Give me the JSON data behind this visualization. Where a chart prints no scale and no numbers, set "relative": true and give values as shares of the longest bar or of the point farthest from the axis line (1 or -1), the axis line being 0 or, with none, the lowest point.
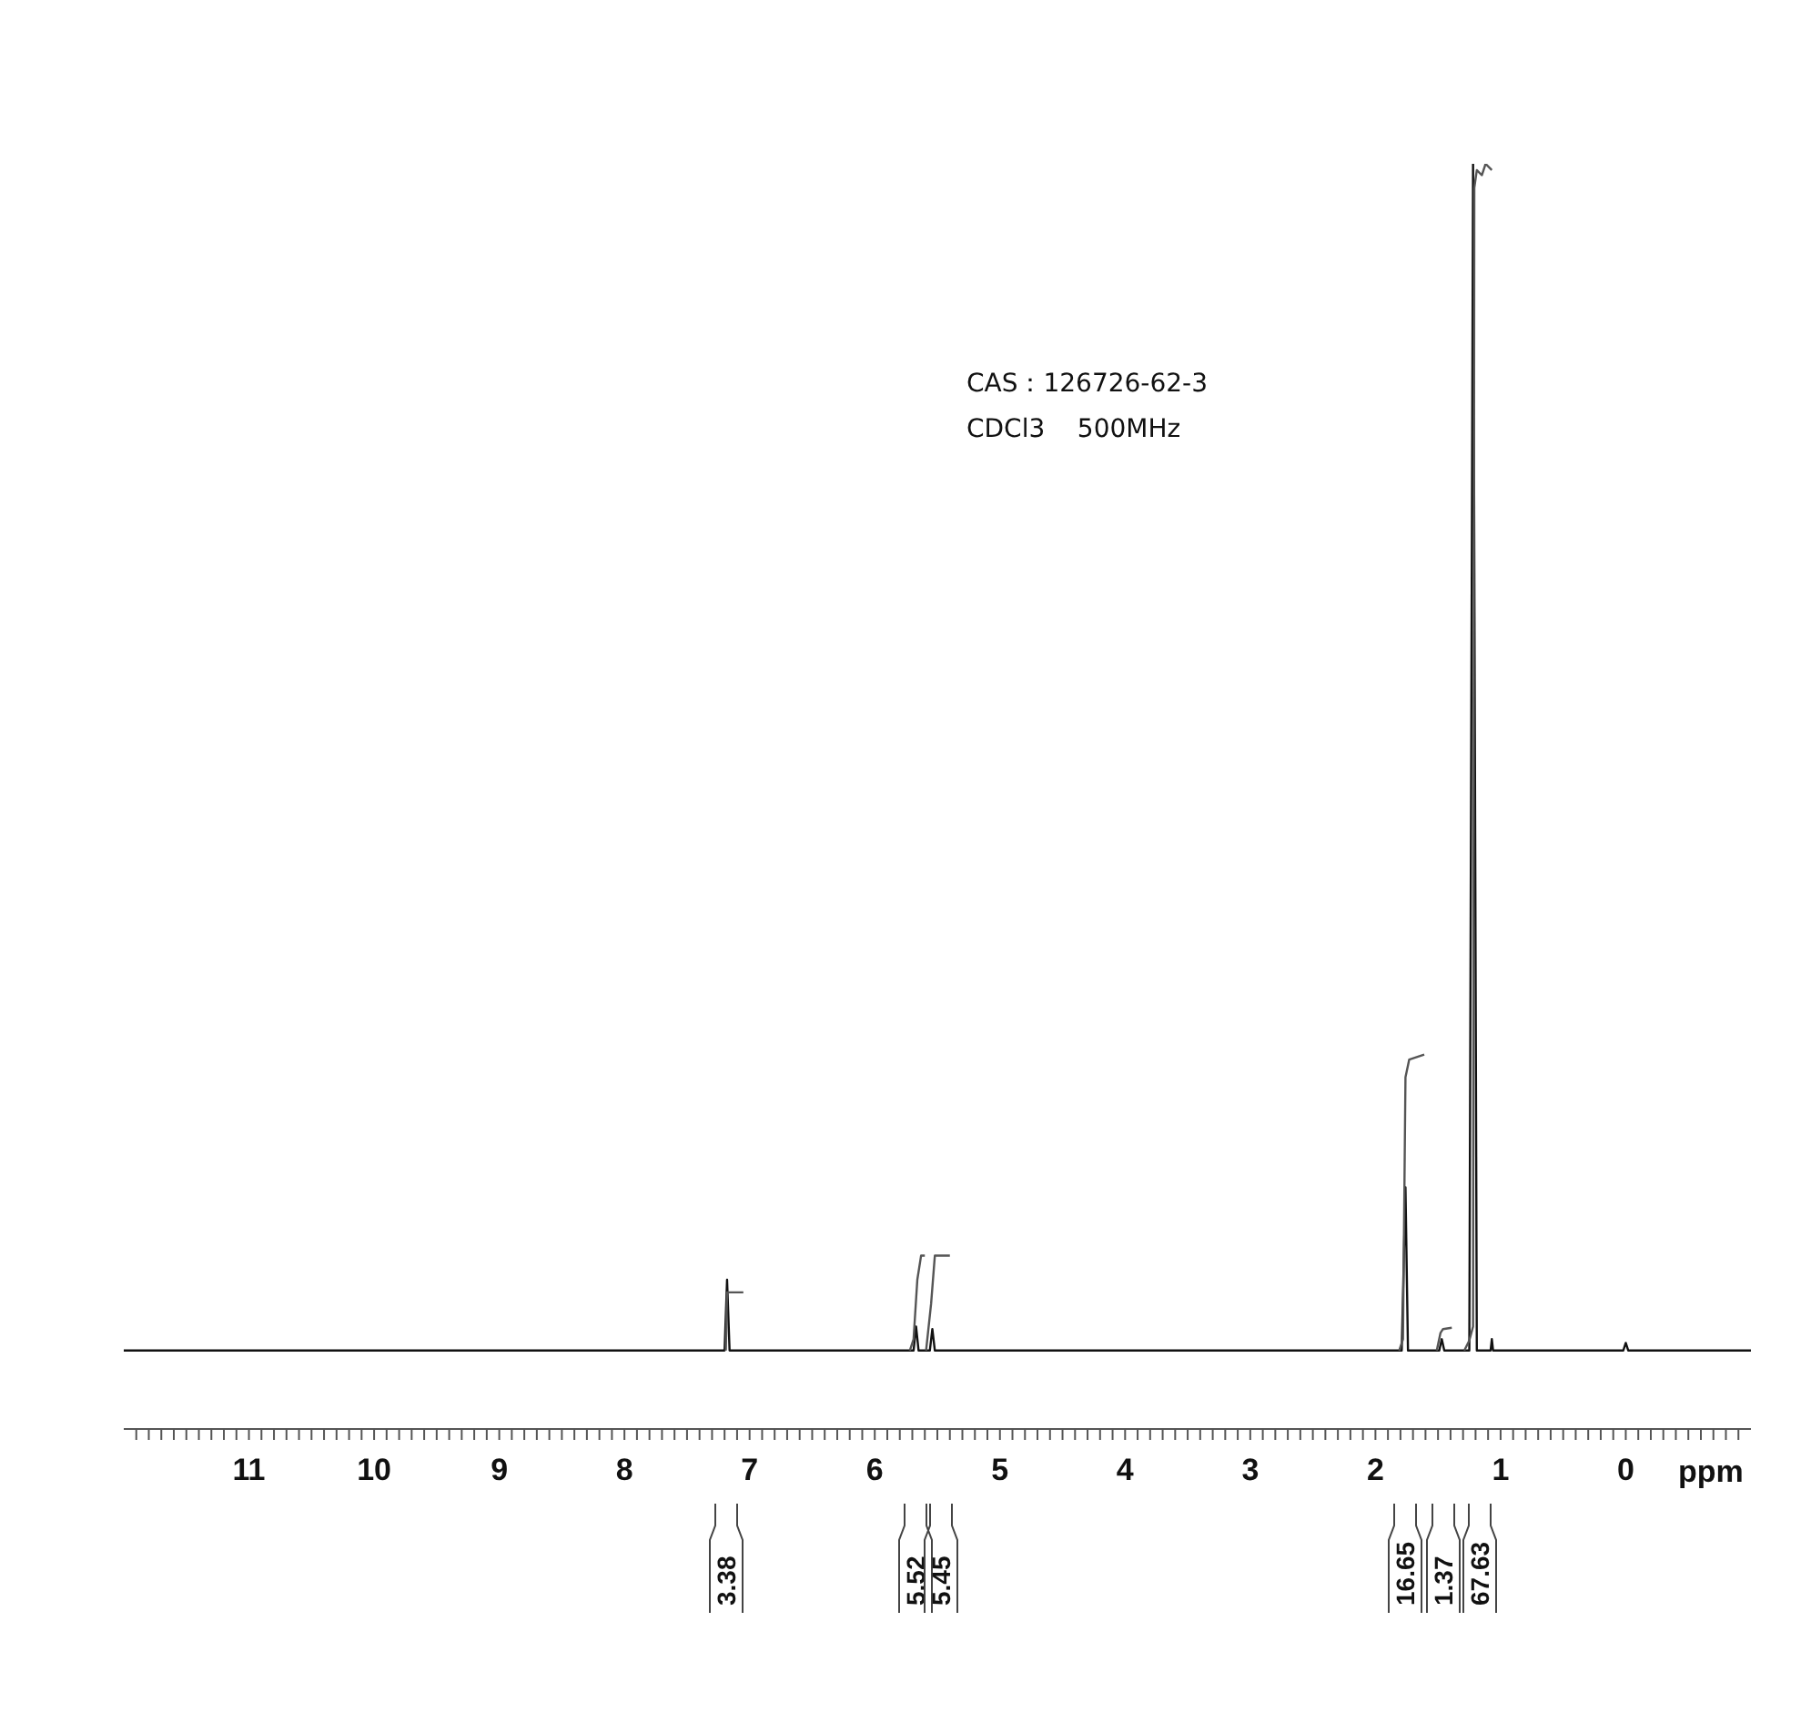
{
  "chart_data": {
    "type": "line",
    "relative": true,
    "xlabel": "ppm",
    "xlim": [
      12,
      -1
    ],
    "grid": false,
    "legend": false,
    "marker": "none",
    "line_style": "solid",
    "xticks": [
      {
        "value": 11.9,
        "label": null
      },
      {
        "value": 11.8,
        "label": null
      },
      {
        "value": 11.7,
        "label": null
      },
      {
        "value": 11.6,
        "label": null
      },
      {
        "value": 11.5,
        "label": null
      },
      {
        "value": 11.4,
        "label": null
      },
      {
        "value": 11.3,
        "label": null
      },
      {
        "value": 11.2,
        "label": null
      },
      {
        "value": 11.1,
        "label": null
      },
      11,
      {
        "value": 10.9,
        "label": null
      },
      {
        "value": 10.8,
        "label": null
      },
      {
        "value": 10.7,
        "label": null
      },
      {
        "value": 10.6,
        "label": null
      },
      {
        "value": 10.5,
        "label": null
      },
      {
        "value": 10.4,
        "label": null
      },
      {
        "value": 10.3,
        "label": null
      },
      {
        "value": 10.2,
        "label": null
      },
      {
        "value": 10.1,
        "label": null
      },
      10,
      {
        "value": 9.9,
        "label": null
      },
      {
        "value": 9.8,
        "label": null
      },
      {
        "value": 9.7,
        "label": null
      },
      {
        "value": 9.6,
        "label": null
      },
      {
        "value": 9.5,
        "label": null
      },
      {
        "value": 9.4,
        "label": null
      },
      {
        "value": 9.3,
        "label": null
      },
      {
        "value": 9.2,
        "label": null
      },
      {
        "value": 9.1,
        "label": null
      },
      9,
      {
        "value": 8.9,
        "label": null
      },
      {
        "value": 8.8,
        "label": null
      },
      {
        "value": 8.7,
        "label": null
      },
      {
        "value": 8.6,
        "label": null
      },
      {
        "value": 8.5,
        "label": null
      },
      {
        "value": 8.4,
        "label": null
      },
      {
        "value": 8.3,
        "label": null
      },
      {
        "value": 8.2,
        "label": null
      },
      {
        "value": 8.1,
        "label": null
      },
      8,
      {
        "value": 7.9,
        "label": null
      },
      {
        "value": 7.8,
        "label": null
      },
      {
        "value": 7.7,
        "label": null
      },
      {
        "value": 7.6,
        "label": null
      },
      {
        "value": 7.5,
        "label": null
      },
      {
        "value": 7.4,
        "label": null
      },
      {
        "value": 7.3,
        "label": null
      },
      {
        "value": 7.2,
        "label": null
      },
      {
        "value": 7.1,
        "label": null
      },
      7,
      {
        "value": 6.9,
        "label": null
      },
      {
        "value": 6.8,
        "label": null
      },
      {
        "value": 6.7,
        "label": null
      },
      {
        "value": 6.6,
        "label": null
      },
      {
        "value": 6.5,
        "label": null
      },
      {
        "value": 6.4,
        "label": null
      },
      {
        "value": 6.3,
        "label": null
      },
      {
        "value": 6.2,
        "label": null
      },
      {
        "value": 6.1,
        "label": null
      },
      6,
      {
        "value": 5.9,
        "label": null
      },
      {
        "value": 5.8,
        "label": null
      },
      {
        "value": 5.7,
        "label": null
      },
      {
        "value": 5.6,
        "label": null
      },
      {
        "value": 5.5,
        "label": null
      },
      {
        "value": 5.4,
        "label": null
      },
      {
        "value": 5.3,
        "label": null
      },
      {
        "value": 5.2,
        "label": null
      },
      {
        "value": 5.1,
        "label": null
      },
      5,
      {
        "value": 4.9,
        "label": null
      },
      {
        "value": 4.8,
        "label": null
      },
      {
        "value": 4.7,
        "label": null
      },
      {
        "value": 4.6,
        "label": null
      },
      {
        "value": 4.5,
        "label": null
      },
      {
        "value": 4.4,
        "label": null
      },
      {
        "value": 4.3,
        "label": null
      },
      {
        "value": 4.2,
        "label": null
      },
      {
        "value": 4.1,
        "label": null
      },
      4,
      {
        "value": 3.9,
        "label": null
      },
      {
        "value": 3.8,
        "label": null
      },
      {
        "value": 3.7,
        "label": null
      },
      {
        "value": 3.6,
        "label": null
      },
      {
        "value": 3.5,
        "label": null
      },
      {
        "value": 3.4,
        "label": null
      },
      {
        "value": 3.3,
        "label": null
      },
      {
        "value": 3.2,
        "label": null
      },
      {
        "value": 3.1,
        "label": null
      },
      3,
      {
        "value": 2.9,
        "label": null
      },
      {
        "value": 2.8,
        "label": null
      },
      {
        "value": 2.7,
        "label": null
      },
      {
        "value": 2.6,
        "label": null
      },
      {
        "value": 2.5,
        "label": null
      },
      {
        "value": 2.4,
        "label": null
      },
      {
        "value": 2.3,
        "label": null
      },
      {
        "value": 2.2,
        "label": null
      },
      {
        "value": 2.1,
        "label": null
      },
      2,
      {
        "value": 1.9,
        "label": null
      },
      {
        "value": 1.8,
        "label": null
      },
      {
        "value": 1.7,
        "label": null
      },
      {
        "value": 1.6,
        "label": null
      },
      {
        "value": 1.5,
        "label": null
      },
      {
        "value": 1.4,
        "label": null
      },
      {
        "value": 1.3,
        "label": null
      },
      {
        "value": 1.2,
        "label": null
      },
      {
        "value": 1.1,
        "label": null
      },
      1,
      {
        "value": 0.9,
        "label": null
      },
      {
        "value": 0.8,
        "label": null
      },
      {
        "value": 0.7,
        "label": null
      },
      {
        "value": 0.6,
        "label": null
      },
      {
        "value": 0.5,
        "label": null
      },
      {
        "value": 0.4,
        "label": null
      },
      {
        "value": 0.3,
        "label": null
      },
      {
        "value": 0.2,
        "label": null
      },
      {
        "value": 0.1,
        "label": null
      },
      0,
      {
        "value": -0.1,
        "label": null
      },
      {
        "value": -0.2,
        "label": null
      },
      {
        "value": -0.3,
        "label": null
      },
      {
        "value": -0.4,
        "label": null
      },
      {
        "value": -0.5,
        "label": null
      },
      {
        "value": -0.6,
        "label": null
      },
      {
        "value": -0.7,
        "label": null
      },
      {
        "value": -0.8,
        "label": null
      },
      {
        "value": -0.9,
        "label": null
      }
    ],
    "series": [
      {
        "color": "#111111",
        "x": [
          12,
          7.2,
          7.18,
          7.16,
          5.69,
          5.67,
          5.65,
          5.56,
          5.54,
          5.52,
          1.79,
          1.76,
          1.74,
          1.49,
          1.47,
          1.45,
          1.25,
          1.22,
          1.19,
          1.08,
          1.07,
          1.06,
          0.02,
          0,
          -0.02,
          -1
        ],
        "values": [
          0.062,
          0.062,
          0.118,
          0.062,
          0.062,
          0.081,
          0.062,
          0.062,
          0.079,
          0.062,
          0.062,
          0.191,
          0.062,
          0.062,
          0.071,
          0.062,
          0.062,
          1,
          0.062,
          0.062,
          0.071,
          0.062,
          0.062,
          0.068,
          0.062,
          0.062
        ]
      },
      {
        "color": "#555555",
        "x": [
          7.19,
          7.18,
          7.05,
          7.0,
          5.72,
          5.69,
          5.66,
          5.63,
          5.6,
          5.595,
          5.59,
          5.55,
          5.52,
          5.4,
          5.3,
          1.81,
          1.78,
          1.76,
          1.73,
          1.61,
          1.6,
          1.51,
          1.48,
          1.46,
          1.39,
          1.35,
          1.29,
          1.25,
          1.22,
          1.21,
          1.19,
          1.15,
          1.12,
          1.07
        ],
        "values": [
          0.062,
          0.108,
          0.108,
          null,
          0.062,
          0.071,
          0.118,
          0.137,
          0.137,
          null,
          0.062,
          0.099,
          0.137,
          0.137,
          null,
          0.062,
          0.071,
          0.278,
          0.292,
          0.296,
          null,
          0.062,
          0.076,
          0.079,
          0.08,
          null,
          0.062,
          0.07,
          0.081,
          0.981,
          0.995,
          0.991,
          1,
          0.995
        ]
      }
    ],
    "annotations": [
      "CAS：126726-62-3",
      "CDCl3    500MHz",
      "3.38",
      "5.52",
      "5.45",
      "16.65",
      "1.37",
      "67.63"
    ]
  }
}
